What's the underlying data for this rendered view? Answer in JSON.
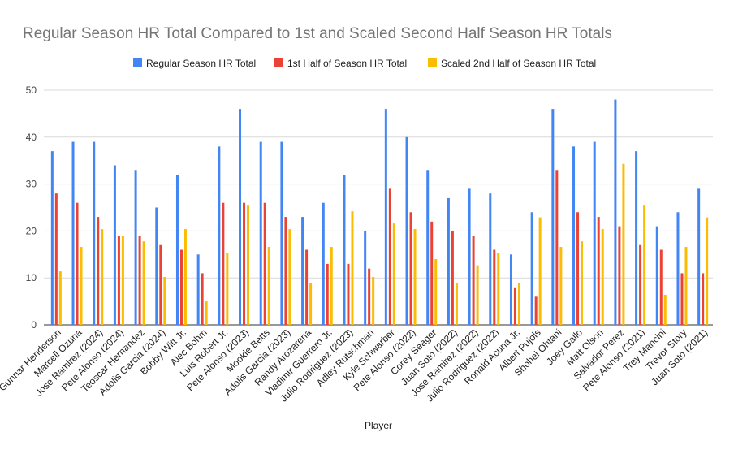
{
  "chart_data": {
    "type": "bar",
    "title": "Regular Season HR Total  Compared to 1st and Scaled Second Half Season HR Totals",
    "xlabel": "Player",
    "ylabel": "",
    "ylim": [
      0,
      50
    ],
    "yticks": [
      0,
      10,
      20,
      30,
      40,
      50
    ],
    "grid": true,
    "legend_position": "top",
    "categories": [
      "Gunnar Henderson",
      "Marcell Ozuna",
      "Jose Ramirez (2024)",
      "Pete Alonso (2024)",
      "Teoscar Hernandez",
      "Adolis Garcia (2024)",
      "Bobby Witt Jr.",
      "Alec Bohm",
      "Luis Robert Jr.",
      "Pete Alonso (2023)",
      "Mookie Betts",
      "Adolis Garcia (2023)",
      "Randy Arozarena",
      "Vladimir Guerrero Jr.",
      "Julio Rodriguez (2023)",
      "Adley Rutschman",
      "Kyle Schwarber",
      "Pete Alonso (2022)",
      "Corey Seager",
      "Juan Soto (2022)",
      "Jose Ramirez (2022)",
      "Julio Rodriguez (2022)",
      "Ronald Acuna Jr.",
      "Albert Pujols",
      "Shohei Ohtani",
      "Joey Gallo",
      "Matt Olson",
      "Salvador Perez",
      "Pete Alonso (2021)",
      "Trey Mancini",
      "Trevor Story",
      "Juan Soto (2021)"
    ],
    "series": [
      {
        "name": "Regular Season HR Total",
        "color": "#4285f4",
        "values": [
          37,
          39,
          39,
          34,
          33,
          25,
          32,
          15,
          38,
          46,
          39,
          39,
          23,
          26,
          32,
          20,
          46,
          40,
          33,
          27,
          29,
          28,
          15,
          24,
          46,
          38,
          39,
          48,
          37,
          21,
          24,
          29
        ]
      },
      {
        "name": "1st Half of Season HR Total",
        "color": "#ea4335",
        "values": [
          28,
          26,
          23,
          19,
          19,
          17,
          16,
          11,
          26,
          26,
          26,
          23,
          16,
          13,
          13,
          12,
          29,
          24,
          22,
          20,
          19,
          16,
          8,
          6,
          33,
          24,
          23,
          21,
          17,
          16,
          11,
          11
        ]
      },
      {
        "name": "Scaled 2nd Half of Season HR Total",
        "color": "#fbbc04",
        "values": [
          11.4,
          16.6,
          20.4,
          19,
          17.8,
          10.2,
          20.4,
          5,
          15.3,
          25.4,
          16.6,
          20.4,
          8.9,
          16.6,
          24.2,
          10.2,
          21.6,
          20.4,
          14,
          8.9,
          12.7,
          15.3,
          8.9,
          22.9,
          16.6,
          17.8,
          20.4,
          34.3,
          25.4,
          6.4,
          16.6,
          22.9
        ]
      }
    ]
  }
}
